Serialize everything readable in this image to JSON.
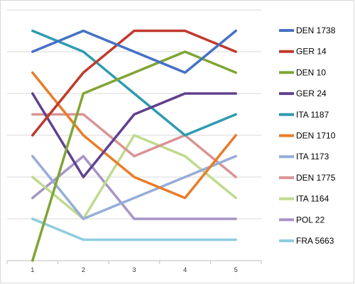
{
  "chart_data": {
    "type": "line",
    "x": [
      "1",
      "2",
      "3",
      "4",
      "5"
    ],
    "ylim": [
      0,
      12
    ],
    "y_axis_labels_shown": false,
    "grid": "horizontal",
    "legend_position": "right",
    "series": [
      {
        "name": "DEN 1738",
        "color": "#4472C4",
        "values": [
          10,
          11,
          10,
          9,
          11
        ]
      },
      {
        "name": "GER 14",
        "color": "#C0392B",
        "values": [
          6,
          9,
          11,
          11,
          10
        ]
      },
      {
        "name": "DEN 10",
        "color": "#7FA534",
        "values": [
          0,
          8,
          9,
          10,
          9
        ]
      },
      {
        "name": "GER 24",
        "color": "#60408F",
        "values": [
          8,
          4,
          7,
          8,
          8
        ]
      },
      {
        "name": "ITA 1187",
        "color": "#2E9BB0",
        "values": [
          11,
          10,
          8,
          6,
          7
        ]
      },
      {
        "name": "DEN 1710",
        "color": "#E87D2A",
        "values": [
          9,
          6,
          4,
          3,
          6
        ]
      },
      {
        "name": "ITA 1173",
        "color": "#96ADD8",
        "values": [
          5,
          2,
          3,
          4,
          5
        ]
      },
      {
        "name": "DEN 1775",
        "color": "#DA9495",
        "values": [
          7,
          7,
          5,
          6,
          4
        ]
      },
      {
        "name": "ITA 1164",
        "color": "#BFDB8E",
        "values": [
          4,
          2,
          6,
          5,
          3
        ]
      },
      {
        "name": "POL 22",
        "color": "#A695C6",
        "values": [
          3,
          5,
          2,
          2,
          2
        ]
      },
      {
        "name": "FRA 5663",
        "color": "#8ECDDF",
        "values": [
          2,
          1,
          1,
          1,
          1
        ]
      }
    ]
  }
}
